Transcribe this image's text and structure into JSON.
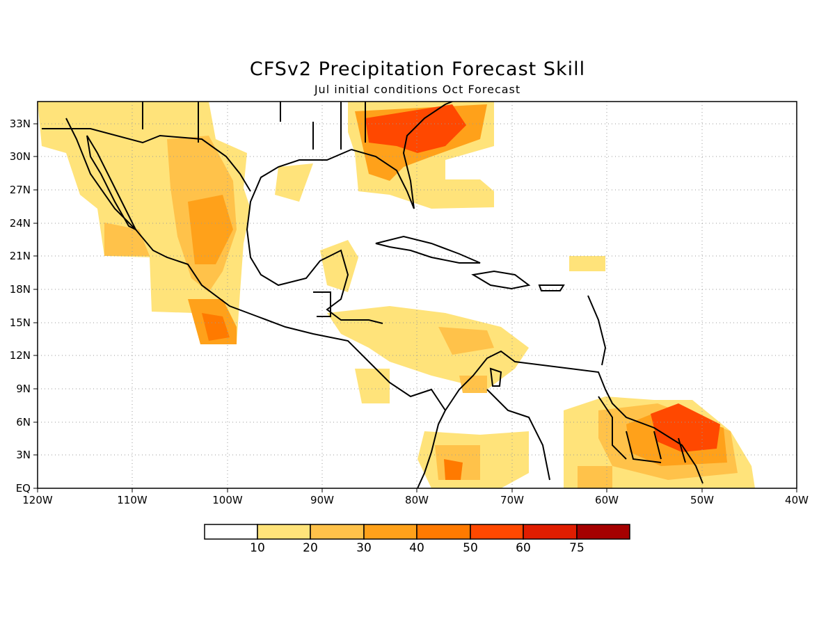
{
  "title": "CFSv2 Precipitation Forecast Skill",
  "subtitle": "Jul initial conditions  Oct Forecast",
  "map": {
    "lon_range": [
      -120,
      -40
    ],
    "lat_range": [
      0,
      35
    ],
    "lon_labels": [
      "120W",
      "110W",
      "100W",
      "90W",
      "80W",
      "70W",
      "60W",
      "50W",
      "40W"
    ],
    "lat_labels": [
      "EQ",
      "3N",
      "6N",
      "9N",
      "12N",
      "15N",
      "18N",
      "21N",
      "24N",
      "27N",
      "30N",
      "33N"
    ],
    "grid": true
  },
  "colorbar": {
    "levels": [
      "10",
      "20",
      "30",
      "40",
      "50",
      "60",
      "75"
    ],
    "colors": [
      "#ffffff",
      "#ffe37a",
      "#ffc24a",
      "#ffa11a",
      "#ff7a00",
      "#ff4800",
      "#e01d00",
      "#a50000"
    ]
  }
}
